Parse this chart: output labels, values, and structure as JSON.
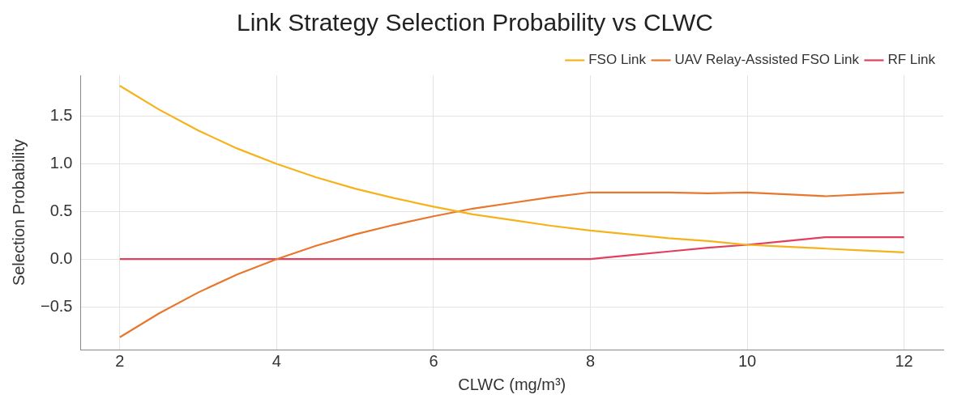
{
  "chart_data": {
    "type": "line",
    "title": "Link Strategy Selection Probability vs CLWC",
    "xlabel": "CLWC (mg/m³)",
    "ylabel": "Selection Probability",
    "x": [
      2,
      2.5,
      3,
      3.5,
      4,
      4.5,
      5,
      5.5,
      6,
      6.5,
      7,
      7.5,
      8,
      8.5,
      9,
      9.5,
      10,
      10.5,
      11,
      11.5,
      12
    ],
    "series": [
      {
        "name": "FSO Link",
        "color": "#f5b21a",
        "values": [
          1.82,
          1.57,
          1.35,
          1.16,
          1.0,
          0.86,
          0.74,
          0.64,
          0.55,
          0.47,
          0.41,
          0.35,
          0.3,
          0.26,
          0.22,
          0.19,
          0.15,
          0.13,
          0.11,
          0.09,
          0.07
        ]
      },
      {
        "name": "UAV Relay-Assisted FSO Link",
        "color": "#e8762d",
        "values": [
          -0.82,
          -0.57,
          -0.35,
          -0.16,
          0,
          0.14,
          0.26,
          0.36,
          0.45,
          0.53,
          0.59,
          0.65,
          0.7,
          0.7,
          0.7,
          0.69,
          0.7,
          0.68,
          0.66,
          0.68,
          0.7
        ]
      },
      {
        "name": "RF Link",
        "color": "#e0405e",
        "values": [
          0,
          0,
          0,
          0,
          0,
          0,
          0,
          0,
          0,
          0,
          0,
          0,
          0,
          0.04,
          0.08,
          0.12,
          0.15,
          0.19,
          0.23,
          0.23,
          0.23
        ]
      }
    ],
    "xlim": [
      1.5,
      12.5
    ],
    "xticks": [
      2,
      4,
      6,
      8,
      10,
      12
    ],
    "ylim": [
      -0.95,
      1.93
    ],
    "yticks": [
      {
        "value": -0.5,
        "label": "−0.5"
      },
      {
        "value": 0,
        "label": "0.0"
      },
      {
        "value": 0.5,
        "label": "0.5"
      },
      {
        "value": 1,
        "label": "1.0"
      },
      {
        "value": 1.5,
        "label": "1.5"
      }
    ],
    "grid": true,
    "legend": "top right",
    "marker": "none",
    "line_style": "solid"
  }
}
